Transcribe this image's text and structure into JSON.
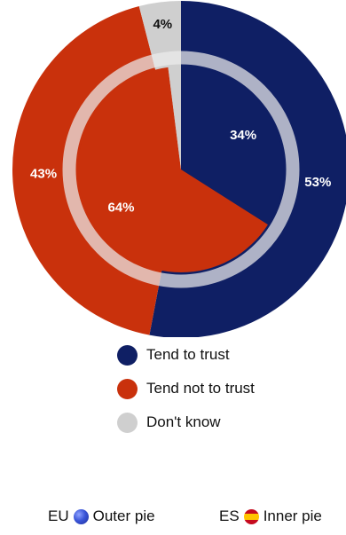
{
  "chart_data": {
    "type": "pie",
    "categories": [
      "Tend to trust",
      "Tend not to trust",
      "Don't know"
    ],
    "colors": [
      "#0f1f64",
      "#c9310c",
      "#cfcfcf"
    ],
    "series": [
      {
        "name": "EU",
        "values": [
          53,
          43,
          4
        ],
        "labels": [
          "53%",
          "43%",
          "4%"
        ],
        "show": [
          true,
          true,
          true
        ]
      },
      {
        "name": "ES",
        "values": [
          34,
          64,
          2
        ],
        "labels": [
          "34%",
          "64%",
          "2%"
        ],
        "show": [
          true,
          true,
          false
        ]
      }
    ]
  },
  "legend": {
    "items": [
      {
        "label": "Tend to trust",
        "color": "#0f1f64"
      },
      {
        "label": "Tend not to trust",
        "color": "#c9310c"
      },
      {
        "label": "Don't know",
        "color": "#cfcfcf"
      }
    ]
  },
  "footer": {
    "eu": {
      "code": "EU",
      "icon": "eu-flag-icon",
      "text": "Outer pie"
    },
    "es": {
      "code": "ES",
      "icon": "spain-flag-icon",
      "text": "Inner pie"
    }
  }
}
